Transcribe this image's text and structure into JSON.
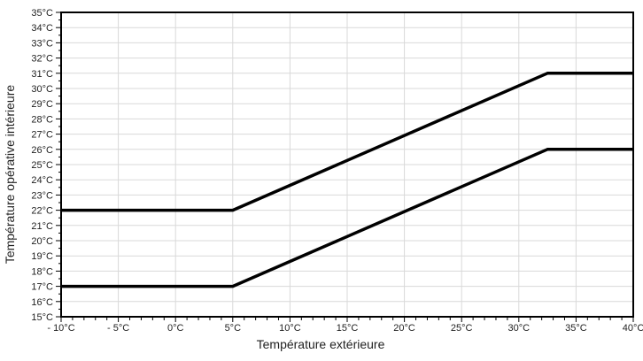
{
  "colors": {
    "background": "#ffffff",
    "plot_background": "#ffffff",
    "grid": "#d9d9d9",
    "axis": "#000000",
    "text": "#1f1f1f",
    "series": "#000000"
  },
  "chart_data": {
    "type": "line",
    "title": "",
    "xlabel": "Température extérieure",
    "ylabel": "Température opérative intérieure",
    "xlim": [
      -10,
      40
    ],
    "ylim": [
      15,
      35
    ],
    "grid": {
      "horizontal_step": 1,
      "vertical_step": 5,
      "on": true
    },
    "legend": "none",
    "x_axis": {
      "major_step": 5,
      "minor_step": 1,
      "tick_values": [
        -10,
        -5,
        0,
        5,
        10,
        15,
        20,
        25,
        30,
        35,
        40
      ],
      "tick_labels": [
        "- 10°C",
        "- 5°C",
        "0°C",
        "5°C",
        "10°C",
        "15°C",
        "20°C",
        "25°C",
        "30°C",
        "35°C",
        "40°C"
      ]
    },
    "y_axis": {
      "major_step": 1,
      "minor_step": 0.5,
      "tick_values": [
        15,
        16,
        17,
        18,
        19,
        20,
        21,
        22,
        23,
        24,
        25,
        26,
        27,
        28,
        29,
        30,
        31,
        32,
        33,
        34,
        35
      ],
      "tick_labels": [
        "15°C",
        "16°C",
        "17°C",
        "18°C",
        "19°C",
        "20°C",
        "21°C",
        "22°C",
        "23°C",
        "24°C",
        "25°C",
        "26°C",
        "27°C",
        "28°C",
        "29°C",
        "30°C",
        "31°C",
        "32°C",
        "33°C",
        "34°C",
        "35°C"
      ]
    },
    "series": [
      {
        "id": "upper-limit",
        "color": "#000000",
        "stroke_width": 3.5,
        "points": [
          [
            -10,
            22
          ],
          [
            5,
            22
          ],
          [
            32.5,
            31
          ],
          [
            40,
            31
          ]
        ]
      },
      {
        "id": "lower-limit",
        "color": "#000000",
        "stroke_width": 3.5,
        "points": [
          [
            -10,
            17
          ],
          [
            5,
            17
          ],
          [
            32.5,
            26
          ],
          [
            40,
            26
          ]
        ]
      }
    ]
  }
}
